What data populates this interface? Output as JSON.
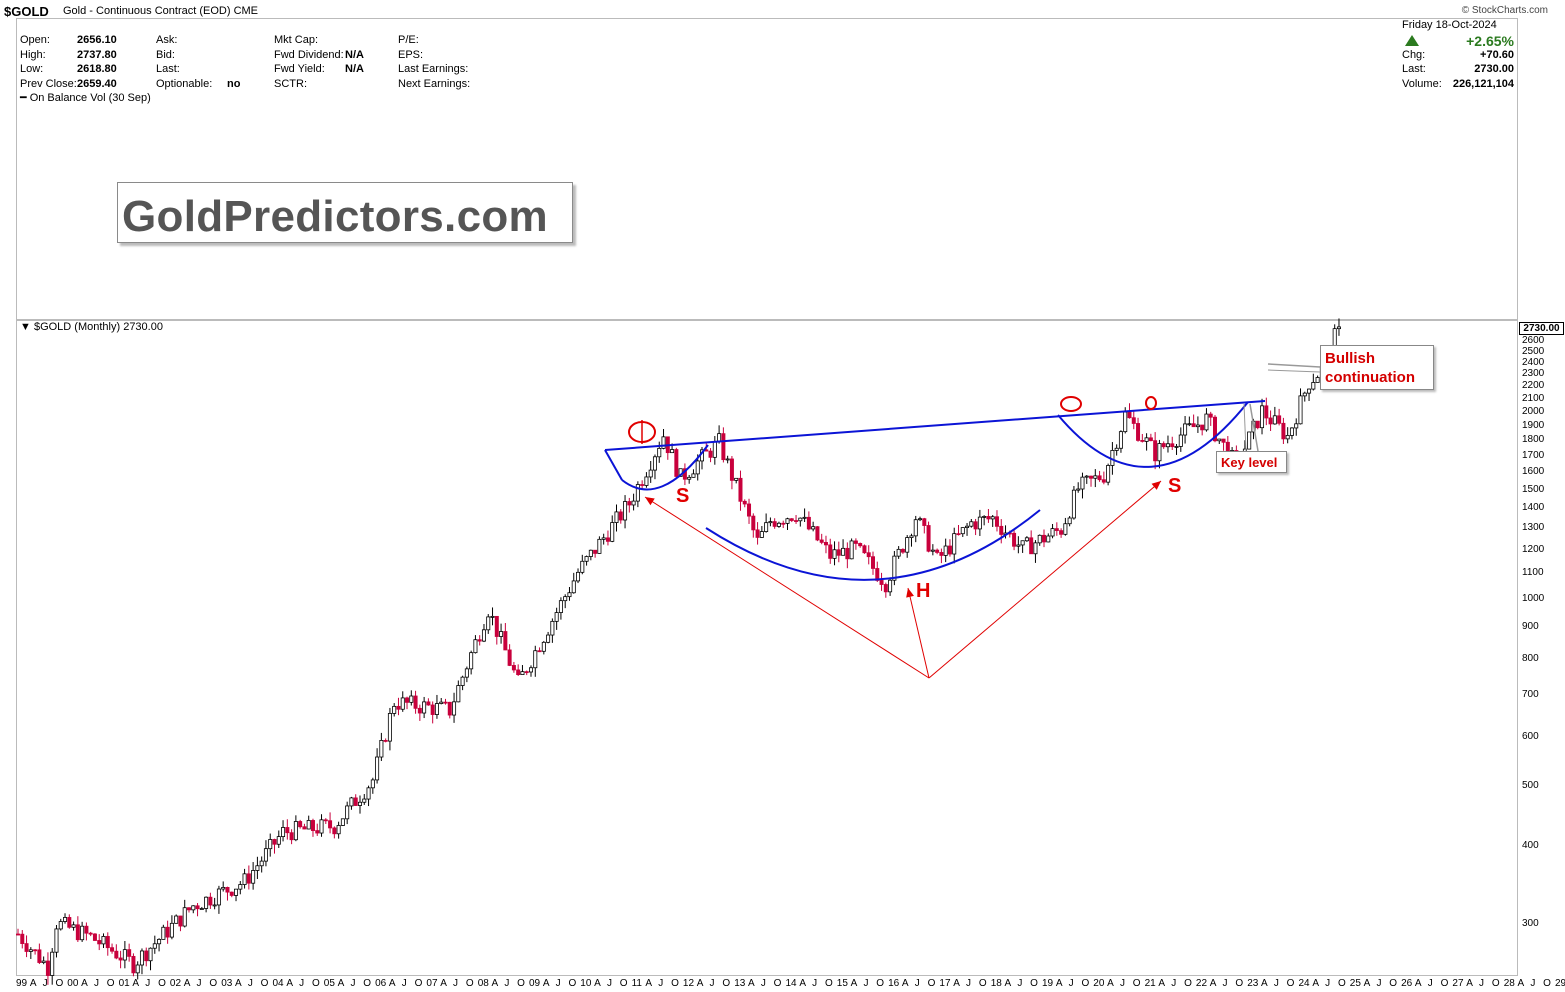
{
  "header": {
    "ticker": "$GOLD",
    "description": "Gold - Continuous Contract (EOD) CME",
    "credit": "© StockCharts.com",
    "date": "Friday   18-Oct-2024"
  },
  "stats": {
    "col1": [
      {
        "label": "Open:",
        "value": "2656.10"
      },
      {
        "label": "High:",
        "value": "2737.80"
      },
      {
        "label": "Low:",
        "value": "2618.80"
      },
      {
        "label": "Prev Close:",
        "value": "2659.40"
      }
    ],
    "col2": [
      {
        "label": "Ask:",
        "value": ""
      },
      {
        "label": "Bid:",
        "value": ""
      },
      {
        "label": "Last:",
        "value": ""
      },
      {
        "label": "Optionable:",
        "value": "no"
      }
    ],
    "col3": [
      {
        "label": "Mkt Cap:",
        "value": ""
      },
      {
        "label": "Fwd Dividend:",
        "value": "N/A"
      },
      {
        "label": "Fwd Yield:",
        "value": "N/A"
      },
      {
        "label": "SCTR:",
        "value": ""
      }
    ],
    "col4": [
      {
        "label": "P/E:",
        "value": ""
      },
      {
        "label": "EPS:",
        "value": ""
      },
      {
        "label": "Last Earnings:",
        "value": ""
      },
      {
        "label": "Next Earnings:",
        "value": ""
      }
    ],
    "right": [
      {
        "label": "",
        "value": "+2.65%"
      },
      {
        "label": "Chg:",
        "value": "+70.60"
      },
      {
        "label": "Last:",
        "value": "2730.00"
      },
      {
        "label": "Volume:",
        "value": "226,121,104"
      }
    ],
    "up_color": "#2b7a1f"
  },
  "indicator_label": "On Balance Vol (30 Sep)",
  "brand_text": "GoldPredictors.com",
  "main_label": "$GOLD (Monthly) 2730.00",
  "last_price": "2730.00",
  "annotations": {
    "bullish": [
      "Bullish",
      "continuation"
    ],
    "key_level": "Key level",
    "shoulder_left": "S",
    "head": "H",
    "shoulder_right": "S",
    "color": "#e00000",
    "line_color": "#0b14d6"
  },
  "chart_data": {
    "type": "candlestick",
    "title": "$GOLD (Monthly) 2730.00",
    "y_scale": "log",
    "ylim": [
      250,
      2850
    ],
    "y_ticks": [
      300,
      400,
      500,
      600,
      700,
      800,
      900,
      1000,
      1100,
      1200,
      1300,
      1400,
      1500,
      1600,
      1700,
      1800,
      1900,
      2000,
      2100,
      2200,
      2300,
      2400,
      2500,
      2600
    ],
    "x_range": [
      "1999-01",
      "2030-12"
    ],
    "x_tick_labels": [
      "99",
      "A",
      "J",
      "O",
      "00",
      "A",
      "J",
      "O",
      "01",
      "A",
      "J",
      "O",
      "02",
      "A",
      "J",
      "O",
      "03",
      "A",
      "J",
      "O",
      "04",
      "A",
      "J",
      "O",
      "05",
      "A",
      "J",
      "O",
      "06",
      "A",
      "J",
      "O",
      "07",
      "A",
      "J",
      "O",
      "08",
      "A",
      "J",
      "O",
      "09",
      "A",
      "J",
      "O",
      "10",
      "A",
      "J",
      "O",
      "11",
      "A",
      "J",
      "O",
      "12",
      "A",
      "J",
      "O",
      "13",
      "A",
      "J",
      "O",
      "14",
      "A",
      "J",
      "O",
      "15",
      "A",
      "J",
      "O",
      "16",
      "A",
      "J",
      "O",
      "17",
      "A",
      "J",
      "O",
      "18",
      "A",
      "J",
      "O",
      "19",
      "A",
      "J",
      "O",
      "20",
      "A",
      "J",
      "O",
      "21",
      "A",
      "J",
      "O",
      "22",
      "A",
      "J",
      "O",
      "23",
      "A",
      "J",
      "O",
      "24",
      "A",
      "J",
      "O",
      "25",
      "A",
      "J",
      "O",
      "26",
      "A",
      "J",
      "O",
      "27",
      "A",
      "J",
      "O",
      "28",
      "A",
      "J",
      "O",
      "29",
      "A",
      "J",
      "O"
    ],
    "price_path": [
      [
        "1999-01",
        288
      ],
      [
        "1999-08",
        255
      ],
      [
        "1999-10",
        300
      ],
      [
        "2000-06",
        285
      ],
      [
        "2001-04",
        258
      ],
      [
        "2002-06",
        320
      ],
      [
        "2003-06",
        350
      ],
      [
        "2004-03",
        420
      ],
      [
        "2005-03",
        430
      ],
      [
        "2005-12",
        510
      ],
      [
        "2006-05",
        680
      ],
      [
        "2007-06",
        660
      ],
      [
        "2008-03",
        960
      ],
      [
        "2008-10",
        730
      ],
      [
        "2009-12",
        1100
      ],
      [
        "2010-12",
        1420
      ],
      [
        "2011-08",
        1830
      ],
      [
        "2011-12",
        1560
      ],
      [
        "2012-09",
        1780
      ],
      [
        "2013-06",
        1230
      ],
      [
        "2013-09",
        1330
      ],
      [
        "2014-03",
        1370
      ],
      [
        "2014-11",
        1170
      ],
      [
        "2015-05",
        1200
      ],
      [
        "2015-12",
        1060
      ],
      [
        "2016-07",
        1350
      ],
      [
        "2016-12",
        1150
      ],
      [
        "2017-08",
        1320
      ],
      [
        "2018-01",
        1345
      ],
      [
        "2018-08",
        1200
      ],
      [
        "2019-05",
        1290
      ],
      [
        "2019-09",
        1500
      ],
      [
        "2020-03",
        1580
      ],
      [
        "2020-08",
        1970
      ],
      [
        "2021-03",
        1710
      ],
      [
        "2021-06",
        1780
      ],
      [
        "2022-03",
        1940
      ],
      [
        "2022-10",
        1630
      ],
      [
        "2023-04",
        2000
      ],
      [
        "2023-10",
        1820
      ],
      [
        "2024-03",
        2230
      ],
      [
        "2024-06",
        2330
      ],
      [
        "2024-10",
        2730
      ]
    ],
    "last": 2730.0
  }
}
